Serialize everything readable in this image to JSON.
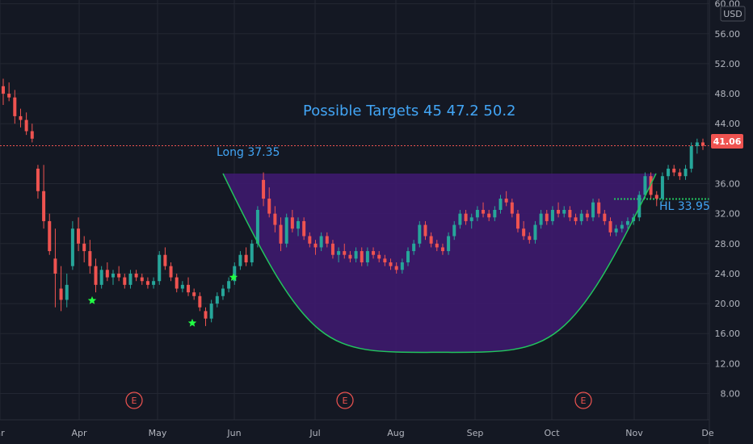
{
  "chart_data": {
    "type": "candlestick",
    "currency": "USD",
    "last_price": "41.06",
    "y_ticks": [
      "60.00",
      "56.00",
      "52.00",
      "48.00",
      "44.00",
      "36.00",
      "32.00",
      "28.00",
      "24.00",
      "20.00",
      "16.00",
      "12.00",
      "8.00"
    ],
    "ylim": [
      4.5,
      60.5
    ],
    "x_ticks": [
      "ar",
      "Apr",
      "May",
      "Jun",
      "Jul",
      "Aug",
      "Sep",
      "Oct",
      "Nov",
      "De"
    ],
    "colors": {
      "up": "#26a69a",
      "down": "#ef5350",
      "fill": "#3d1a6e",
      "arc": "#22c55e",
      "annotation": "#42a5f5",
      "last_price_bg": "#ef5350",
      "target_line": "#ef5350",
      "hl_line": "#22c55e"
    },
    "annotations": {
      "targets": "Possible Targets 45   47.2   50.2",
      "long": "Long 37.35",
      "hl": "HL 33.95",
      "long_level": 37.35,
      "hl_level": 33.95,
      "target_level": 41.06,
      "cup_bottom": 13.5
    },
    "earnings": [
      "E",
      "E",
      "E"
    ],
    "stars": [
      {
        "x": "2021-04-06",
        "y": 20.4
      },
      {
        "x": "2021-05-14",
        "y": 17.4
      },
      {
        "x": "2021-06-01",
        "y": 23.5
      }
    ],
    "candles": [
      [
        49.0,
        50.0,
        46.5,
        48.0
      ],
      [
        48.0,
        49.5,
        47.0,
        47.5
      ],
      [
        47.5,
        48.5,
        44.0,
        45.0
      ],
      [
        45.0,
        46.0,
        43.5,
        44.5
      ],
      [
        44.5,
        45.5,
        42.5,
        43.0
      ],
      [
        43.0,
        44.0,
        41.5,
        42.0
      ],
      [
        38.0,
        38.5,
        34.0,
        35.0
      ],
      [
        35.0,
        38.5,
        30.0,
        31.0
      ],
      [
        31.0,
        32.0,
        26.5,
        27.0
      ],
      [
        26.0,
        30.0,
        19.5,
        24.0
      ],
      [
        22.0,
        25.0,
        19.0,
        20.5
      ],
      [
        20.5,
        24.0,
        19.5,
        22.5
      ],
      [
        25.0,
        31.0,
        24.5,
        30.0
      ],
      [
        30.0,
        31.5,
        27.0,
        28.0
      ],
      [
        28.0,
        29.0,
        25.5,
        27.0
      ],
      [
        27.0,
        28.5,
        24.0,
        25.0
      ],
      [
        25.0,
        26.0,
        21.5,
        22.5
      ],
      [
        22.5,
        25.0,
        22.0,
        24.5
      ],
      [
        24.5,
        25.5,
        23.0,
        23.5
      ],
      [
        23.5,
        24.5,
        22.5,
        24.0
      ],
      [
        24.0,
        25.0,
        23.0,
        23.5
      ],
      [
        23.5,
        24.0,
        22.0,
        22.5
      ],
      [
        22.5,
        24.5,
        22.0,
        24.0
      ],
      [
        24.0,
        24.5,
        23.0,
        23.5
      ],
      [
        23.5,
        24.0,
        22.5,
        23.0
      ],
      [
        23.0,
        23.5,
        22.0,
        22.5
      ],
      [
        22.5,
        23.5,
        22.0,
        23.0
      ],
      [
        23.0,
        27.0,
        22.5,
        26.5
      ],
      [
        26.5,
        27.5,
        24.5,
        25.0
      ],
      [
        25.0,
        25.5,
        23.0,
        23.5
      ],
      [
        23.5,
        24.0,
        21.5,
        22.0
      ],
      [
        22.0,
        23.0,
        21.5,
        22.5
      ],
      [
        22.5,
        23.5,
        21.0,
        21.5
      ],
      [
        21.5,
        22.0,
        20.5,
        21.0
      ],
      [
        21.0,
        21.5,
        19.0,
        19.5
      ],
      [
        19.0,
        19.5,
        17.0,
        18.0
      ],
      [
        18.0,
        20.5,
        17.5,
        20.0
      ],
      [
        20.0,
        21.5,
        19.5,
        21.0
      ],
      [
        21.0,
        22.5,
        20.5,
        22.0
      ],
      [
        22.0,
        23.5,
        21.5,
        23.0
      ],
      [
        23.0,
        25.5,
        22.5,
        25.0
      ],
      [
        25.0,
        27.0,
        24.5,
        26.5
      ],
      [
        26.5,
        27.5,
        25.0,
        25.5
      ],
      [
        25.5,
        28.5,
        25.0,
        28.0
      ],
      [
        28.0,
        33.0,
        27.5,
        32.5
      ],
      [
        36.5,
        37.5,
        33.0,
        34.0
      ],
      [
        34.0,
        35.5,
        31.5,
        32.0
      ],
      [
        32.0,
        33.0,
        29.5,
        30.5
      ],
      [
        30.5,
        31.5,
        27.0,
        28.0
      ],
      [
        28.0,
        32.0,
        27.5,
        31.5
      ],
      [
        31.5,
        32.5,
        29.5,
        30.0
      ],
      [
        30.0,
        31.5,
        29.0,
        31.0
      ],
      [
        31.0,
        31.5,
        28.5,
        29.0
      ],
      [
        29.0,
        29.5,
        27.5,
        28.0
      ],
      [
        28.0,
        28.5,
        26.5,
        27.5
      ],
      [
        27.5,
        29.5,
        27.0,
        29.0
      ],
      [
        29.0,
        29.5,
        27.5,
        28.0
      ],
      [
        28.0,
        28.5,
        26.0,
        26.5
      ],
      [
        26.5,
        27.5,
        25.5,
        27.0
      ],
      [
        27.0,
        28.0,
        26.0,
        26.5
      ],
      [
        26.5,
        27.0,
        25.5,
        26.0
      ],
      [
        26.0,
        27.5,
        25.5,
        27.0
      ],
      [
        27.0,
        27.5,
        25.0,
        25.5
      ],
      [
        25.5,
        27.5,
        25.0,
        27.0
      ],
      [
        27.0,
        27.5,
        26.0,
        26.5
      ],
      [
        26.5,
        27.0,
        25.5,
        26.0
      ],
      [
        26.0,
        26.5,
        25.0,
        25.5
      ],
      [
        25.5,
        26.0,
        24.5,
        25.0
      ],
      [
        25.0,
        25.5,
        24.0,
        24.5
      ],
      [
        24.5,
        26.0,
        24.0,
        25.5
      ],
      [
        25.5,
        27.5,
        25.0,
        27.0
      ],
      [
        27.0,
        28.5,
        26.5,
        28.0
      ],
      [
        28.0,
        31.0,
        27.5,
        30.5
      ],
      [
        30.5,
        31.0,
        28.5,
        29.0
      ],
      [
        29.0,
        29.5,
        27.5,
        28.0
      ],
      [
        28.0,
        28.5,
        27.0,
        27.5
      ],
      [
        27.5,
        28.0,
        26.5,
        27.0
      ],
      [
        27.0,
        29.5,
        26.5,
        29.0
      ],
      [
        29.0,
        31.0,
        28.5,
        30.5
      ],
      [
        30.5,
        32.5,
        30.0,
        32.0
      ],
      [
        32.0,
        32.5,
        30.5,
        31.0
      ],
      [
        31.0,
        32.0,
        30.0,
        31.5
      ],
      [
        31.5,
        33.0,
        31.0,
        32.5
      ],
      [
        32.5,
        33.5,
        31.5,
        32.0
      ],
      [
        32.0,
        32.5,
        31.0,
        31.5
      ],
      [
        31.5,
        33.0,
        31.0,
        32.5
      ],
      [
        32.5,
        34.5,
        32.0,
        34.0
      ],
      [
        34.0,
        35.0,
        33.0,
        33.5
      ],
      [
        33.5,
        34.0,
        31.5,
        32.0
      ],
      [
        32.0,
        32.5,
        29.5,
        30.0
      ],
      [
        30.0,
        31.0,
        28.5,
        29.0
      ],
      [
        29.0,
        29.5,
        28.0,
        28.5
      ],
      [
        28.5,
        31.0,
        28.0,
        30.5
      ],
      [
        30.5,
        32.5,
        30.0,
        32.0
      ],
      [
        32.0,
        32.5,
        30.5,
        31.0
      ],
      [
        31.0,
        33.0,
        30.5,
        32.5
      ],
      [
        32.5,
        33.5,
        31.5,
        32.0
      ],
      [
        32.0,
        33.0,
        31.5,
        32.5
      ],
      [
        32.5,
        33.0,
        31.0,
        31.5
      ],
      [
        31.5,
        32.0,
        30.5,
        31.0
      ],
      [
        31.0,
        32.5,
        30.5,
        32.0
      ],
      [
        32.0,
        32.5,
        31.0,
        31.5
      ],
      [
        31.5,
        34.0,
        31.0,
        33.5
      ],
      [
        33.5,
        34.0,
        31.5,
        32.0
      ],
      [
        32.0,
        32.5,
        30.5,
        31.0
      ],
      [
        31.0,
        31.5,
        29.0,
        29.5
      ],
      [
        29.5,
        30.5,
        29.0,
        30.0
      ],
      [
        30.0,
        31.0,
        29.5,
        30.5
      ],
      [
        30.5,
        31.5,
        30.0,
        31.0
      ],
      [
        31.0,
        32.0,
        30.5,
        31.5
      ],
      [
        31.5,
        35.0,
        31.0,
        34.5
      ],
      [
        34.5,
        37.5,
        34.0,
        37.0
      ],
      [
        37.0,
        37.5,
        34.0,
        34.5
      ],
      [
        34.5,
        35.0,
        33.0,
        34.0
      ],
      [
        34.0,
        37.5,
        33.5,
        37.0
      ],
      [
        37.0,
        38.5,
        36.5,
        38.0
      ],
      [
        38.0,
        38.5,
        37.0,
        37.5
      ],
      [
        37.5,
        38.0,
        36.5,
        37.0
      ],
      [
        37.0,
        38.5,
        36.5,
        38.0
      ],
      [
        38.0,
        41.5,
        37.5,
        41.0
      ],
      [
        41.0,
        42.0,
        40.0,
        41.5
      ],
      [
        41.5,
        42.0,
        40.5,
        41.06
      ]
    ]
  }
}
